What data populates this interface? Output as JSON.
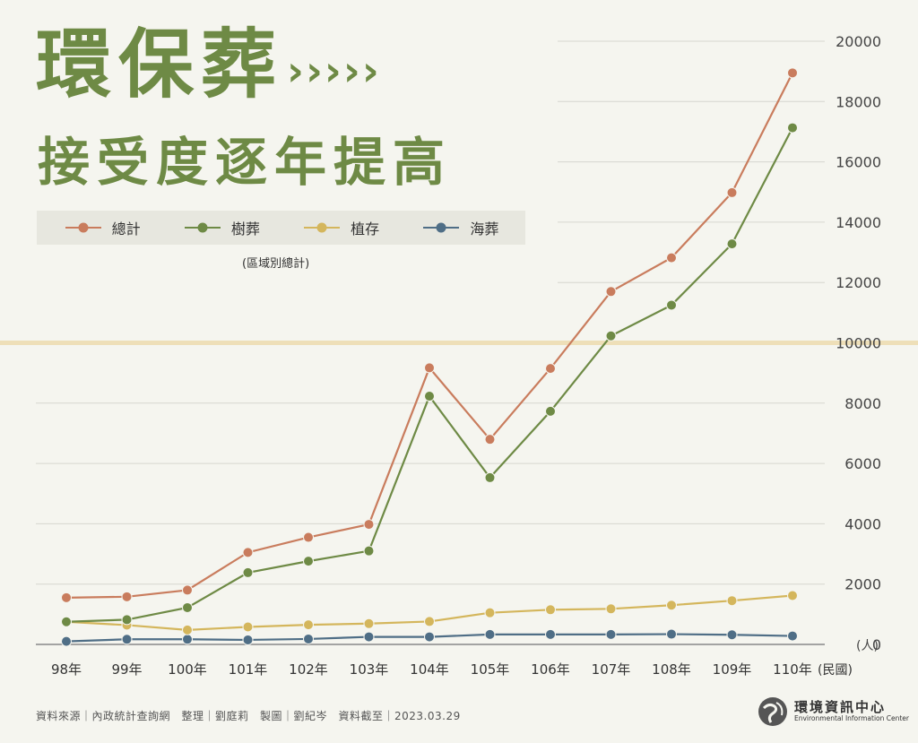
{
  "title": {
    "line1": "環保葬",
    "arrows": "›››››",
    "line2": "接受度逐年提高"
  },
  "legend": [
    {
      "label": "總計",
      "color": "#c97c5d"
    },
    {
      "label": "樹葬",
      "color": "#6e8a45"
    },
    {
      "label": "植存",
      "color": "#d4b65c"
    },
    {
      "label": "海葬",
      "color": "#4f6e86"
    }
  ],
  "subnote": "(區域別總計)",
  "footer": "資料來源｜內政統計查詢網　整理｜劉庭莉　製圖｜劉紀岑　資料截至｜2023.03.29",
  "logo": {
    "name": "環境資訊中心",
    "en": "Environmental Information Center"
  },
  "chart_data": {
    "type": "line",
    "categories": [
      "98年",
      "99年",
      "100年",
      "101年",
      "102年",
      "103年",
      "104年",
      "105年",
      "106年",
      "107年",
      "108年",
      "109年",
      "110年"
    ],
    "x_unit": "(民國)",
    "y_unit": "(人)",
    "ylim": [
      0,
      20000
    ],
    "yticks": [
      0,
      2000,
      4000,
      6000,
      8000,
      10000,
      12000,
      14000,
      16000,
      18000,
      20000
    ],
    "grid": true,
    "highlight_line": 10000,
    "series": [
      {
        "name": "總計",
        "color": "#c97c5d",
        "values": [
          1550,
          1580,
          1800,
          3050,
          3550,
          3980,
          9170,
          6800,
          9150,
          11700,
          12820,
          14980,
          18950
        ]
      },
      {
        "name": "樹葬",
        "color": "#6e8a45",
        "values": [
          750,
          820,
          1220,
          2380,
          2760,
          3100,
          8230,
          5530,
          7730,
          10230,
          11250,
          13280,
          17130
        ]
      },
      {
        "name": "植存",
        "color": "#d4b65c",
        "values": [
          750,
          640,
          480,
          580,
          650,
          690,
          760,
          1050,
          1150,
          1180,
          1300,
          1450,
          1620
        ]
      },
      {
        "name": "海葬",
        "color": "#4f6e86",
        "values": [
          100,
          170,
          170,
          150,
          180,
          250,
          250,
          330,
          330,
          330,
          340,
          320,
          280
        ]
      }
    ]
  }
}
